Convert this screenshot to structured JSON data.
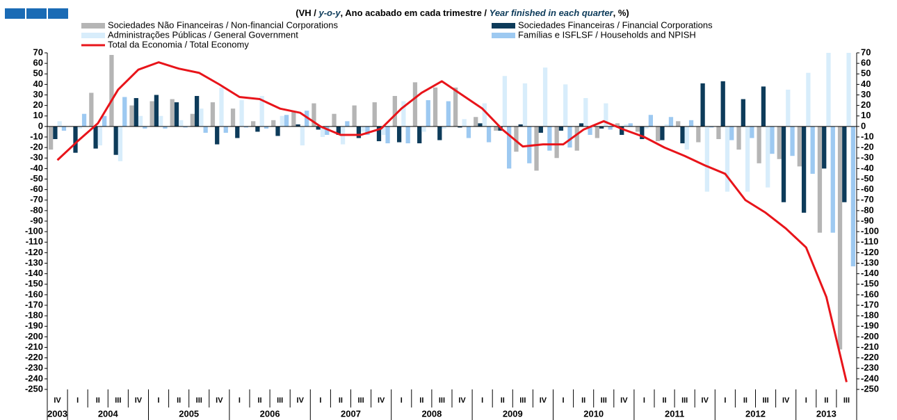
{
  "chart_data": {
    "type": "bar",
    "title_parts": [
      "(VH / ",
      "y-o-y",
      ", Ano acabado em cada trimestre / ",
      "Year finished in each quarter",
      ", %)"
    ],
    "categories": [
      "IV",
      "I",
      "II",
      "III",
      "IV",
      "I",
      "II",
      "III",
      "IV",
      "I",
      "II",
      "III",
      "IV",
      "I",
      "II",
      "III",
      "IV",
      "I",
      "II",
      "III",
      "IV",
      "I",
      "II",
      "III",
      "IV",
      "I",
      "II",
      "III",
      "IV",
      "I",
      "II",
      "III",
      "IV",
      "I",
      "II",
      "III",
      "IV",
      "I",
      "II",
      "III"
    ],
    "years": [
      "2003",
      "2004",
      "2005",
      "2006",
      "2007",
      "2008",
      "2009",
      "2010",
      "2011",
      "2012",
      "2013"
    ],
    "series": [
      {
        "name": "Sociedades Não Financeiras / Non-financial Corporations",
        "color": "#b5b5b5",
        "values": [
          -22,
          0,
          32,
          68,
          20,
          24,
          26,
          12,
          23,
          17,
          5,
          6,
          14,
          22,
          12,
          20,
          23,
          29,
          42,
          37,
          37,
          9,
          -4,
          -24,
          -42,
          -30,
          -23,
          -11,
          3,
          -5,
          -14,
          5,
          -15,
          -12,
          -22,
          -35,
          -31,
          -38,
          -101,
          -212
        ]
      },
      {
        "name": "Sociedades Financeiras / Financial Corporations",
        "color": "#0d3b5a",
        "values": [
          -12,
          -25,
          -21,
          -27,
          27,
          30,
          23,
          29,
          -17,
          -11,
          -5,
          -9,
          2,
          -3,
          -8,
          -11,
          -14,
          -15,
          -16,
          -13,
          -1,
          3,
          -4,
          2,
          -6,
          -4,
          3,
          -2,
          -8,
          -12,
          -13,
          -16,
          41,
          43,
          26,
          38,
          -72,
          -82,
          -40,
          -72
        ]
      },
      {
        "name": "Administrações Públicas / General Government",
        "color": "#d8edfb",
        "values": [
          5,
          -2,
          -18,
          -33,
          10,
          10,
          6,
          17,
          37,
          25,
          29,
          10,
          -18,
          -10,
          -17,
          -5,
          -8,
          24,
          -5,
          -2,
          7,
          22,
          48,
          41,
          56,
          40,
          27,
          22,
          2,
          -2,
          2,
          -22,
          -62,
          -62,
          -62,
          -58,
          35,
          51,
          70,
          70
        ]
      },
      {
        "name": "Famílias e ISFLSF / Households and NPISH",
        "color": "#9dc9f1",
        "values": [
          -4,
          12,
          10,
          28,
          -2,
          -2,
          -1,
          -6,
          -6,
          -1,
          -2,
          11,
          15,
          -8,
          5,
          -8,
          -16,
          -16,
          25,
          24,
          -11,
          -15,
          -40,
          -35,
          -23,
          -20,
          -8,
          -3,
          3,
          11,
          9,
          6,
          -1,
          -13,
          -11,
          -26,
          -28,
          -45,
          -101,
          -133
        ]
      },
      {
        "name": "Total da Economia / Total Economy",
        "color": "#e8141a",
        "type": "line",
        "values": [
          -32,
          -14,
          3,
          35,
          54,
          61,
          55,
          51,
          40,
          28,
          26,
          17,
          13,
          0,
          -8,
          -8,
          -2,
          17,
          32,
          43,
          30,
          17,
          -3,
          -19,
          -17,
          -17,
          -3,
          5,
          -3,
          -10,
          -20,
          -28,
          -37,
          -45,
          -70,
          -82,
          -97,
          -115,
          -162,
          -243
        ]
      }
    ],
    "ylim": [
      -250,
      70
    ],
    "yticks": [
      70,
      60,
      50,
      40,
      30,
      20,
      10,
      0,
      -10,
      -20,
      -30,
      -40,
      -50,
      -60,
      -70,
      -80,
      -90,
      -100,
      -110,
      -120,
      -130,
      -140,
      -150,
      -160,
      -170,
      -180,
      -190,
      -200,
      -210,
      -220,
      -230,
      -240,
      -250
    ]
  }
}
